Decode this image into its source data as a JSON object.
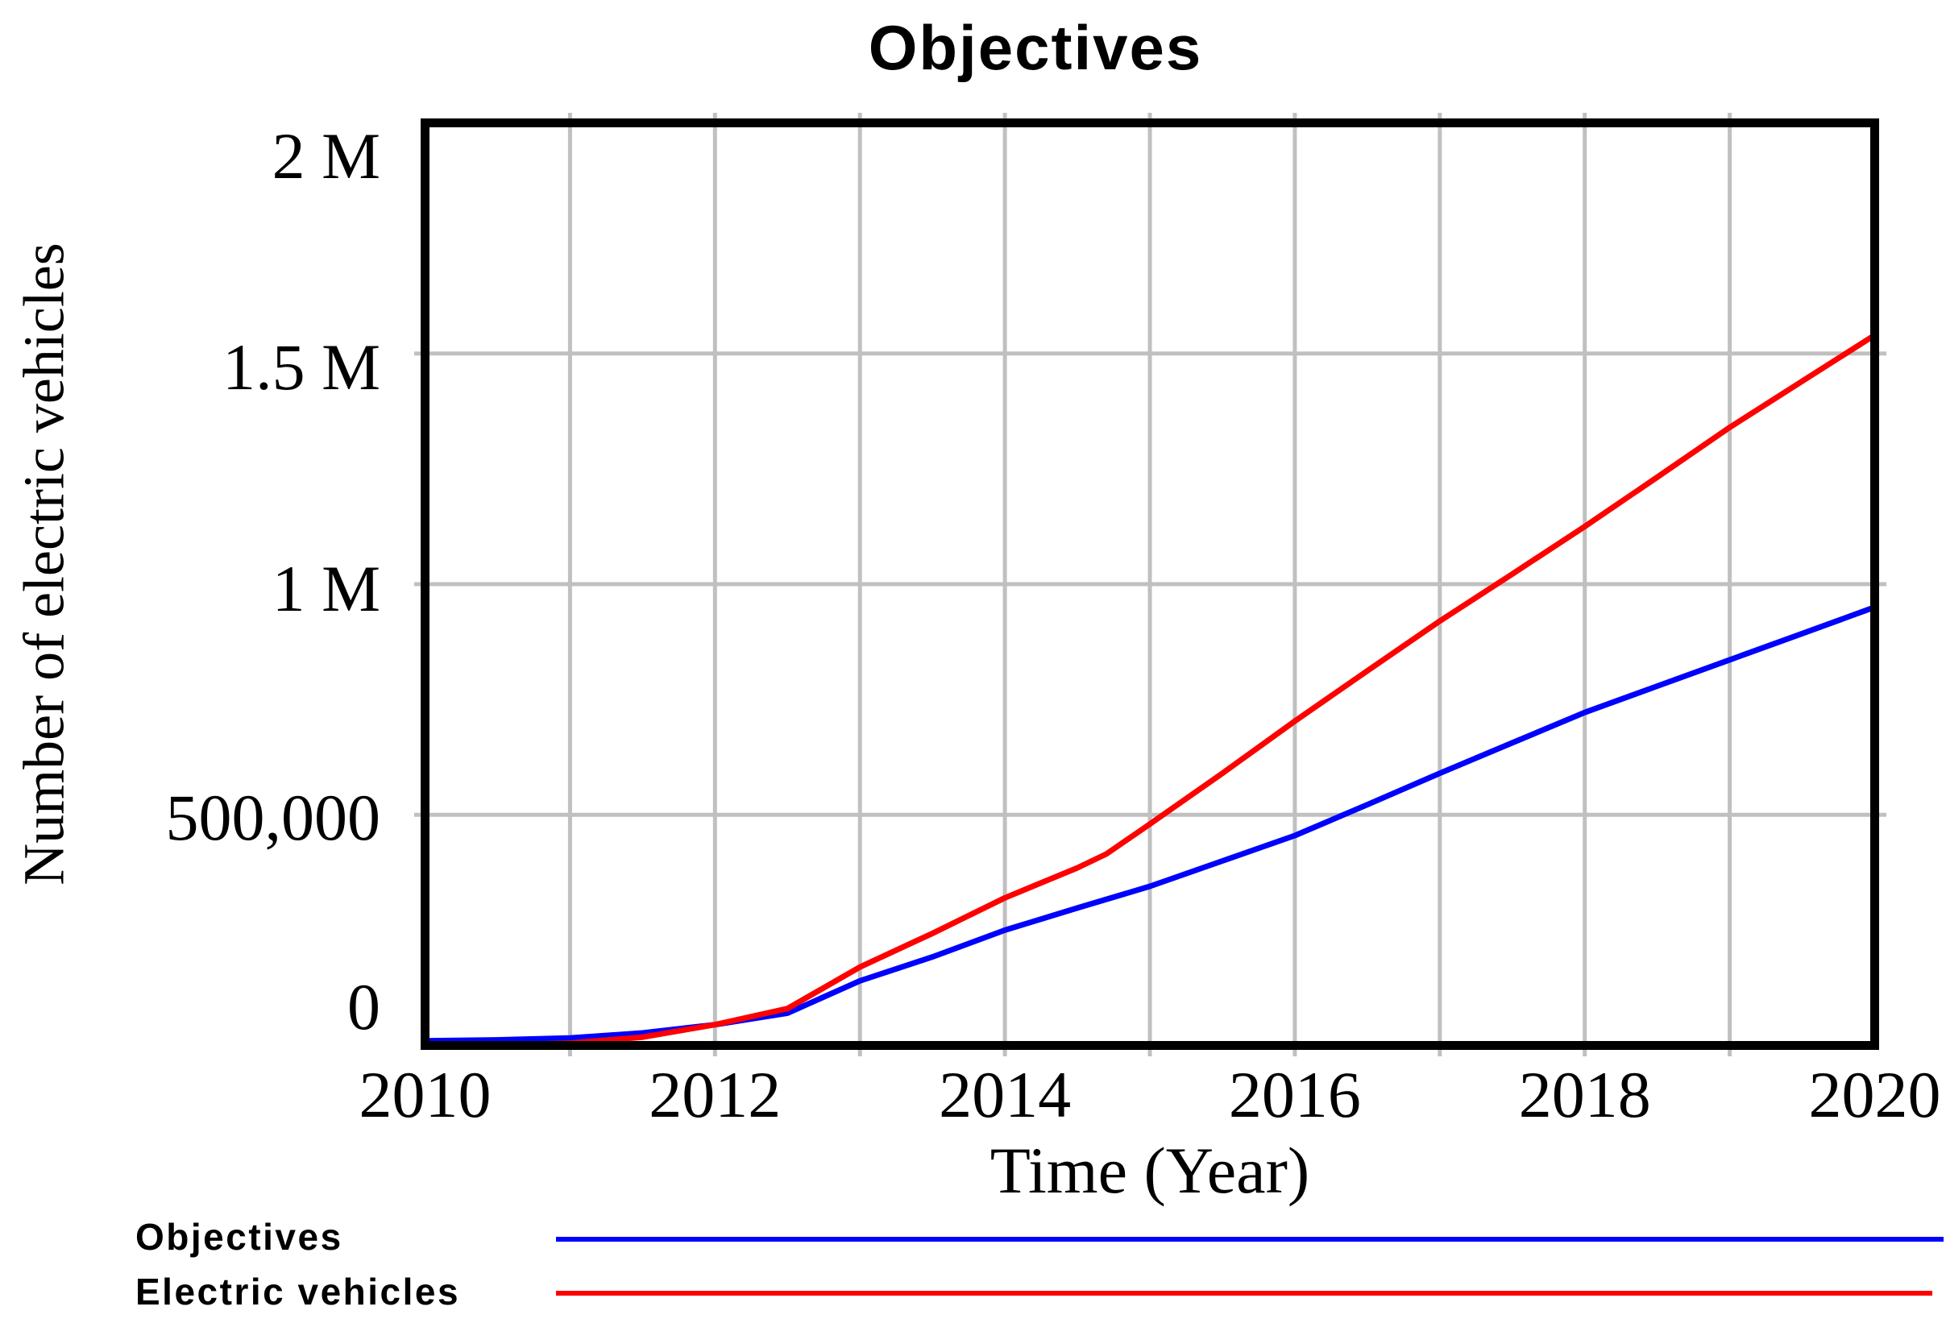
{
  "title": "Objectives",
  "y_axis": {
    "title": "Number of electric vehicles",
    "tick_labels": [
      "0",
      "500,000",
      "1 M",
      "1.5 M",
      "2 M"
    ],
    "tick_values": [
      0,
      500000,
      1000000,
      1500000,
      2000000
    ],
    "min": 0,
    "max": 2000000
  },
  "x_axis": {
    "title": "Time (Year)",
    "tick_labels": [
      "2010",
      "2012",
      "2014",
      "2016",
      "2018",
      "2020"
    ],
    "tick_values": [
      2010,
      2012,
      2014,
      2016,
      2018,
      2020
    ],
    "min": 2010,
    "max": 2020
  },
  "legend": [
    {
      "label": "Objectives",
      "color": "#0000ff"
    },
    {
      "label": "Electric vehicles",
      "color": "#ff0000"
    }
  ],
  "colors": {
    "background": "#ffffff",
    "frame": "#000000",
    "gridline": "#c0c0c0",
    "objectives_line": "#0000ff",
    "electric_vehicles_line": "#ff0000",
    "text": "#000000"
  },
  "chart_data": {
    "type": "line",
    "title": "Objectives",
    "xlabel": "Time (Year)",
    "ylabel": "Number of electric vehicles",
    "xlim": [
      2010,
      2020
    ],
    "ylim": [
      0,
      2000000
    ],
    "x_ticks": [
      2010,
      2012,
      2014,
      2016,
      2018,
      2020
    ],
    "y_ticks": [
      0,
      500000,
      1000000,
      1500000,
      2000000
    ],
    "grid": true,
    "gridline_years": [
      2011,
      2012,
      2013,
      2014,
      2015,
      2016,
      2017,
      2018,
      2019
    ],
    "legend_position": "bottom-left",
    "series": [
      {
        "name": "Objectives",
        "color": "#0000ff",
        "points": [
          [
            2010,
            10000
          ],
          [
            2010.5,
            12000
          ],
          [
            2011,
            16000
          ],
          [
            2011.5,
            27000
          ],
          [
            2012,
            45000
          ],
          [
            2012.5,
            70000
          ],
          [
            2013,
            140000
          ],
          [
            2013.5,
            192000
          ],
          [
            2014,
            250000
          ],
          [
            2014.5,
            298000
          ],
          [
            2015,
            345000
          ],
          [
            2015.5,
            400000
          ],
          [
            2016,
            455000
          ],
          [
            2016.5,
            522000
          ],
          [
            2017,
            590000
          ],
          [
            2017.5,
            656000
          ],
          [
            2018,
            722000
          ],
          [
            2018.5,
            779000
          ],
          [
            2019,
            836000
          ],
          [
            2019.5,
            893000
          ],
          [
            2020,
            950000
          ]
        ]
      },
      {
        "name": "Electric vehicles",
        "color": "#ff0000",
        "points": [
          [
            2010,
            0
          ],
          [
            2010.5,
            1000
          ],
          [
            2011,
            5000
          ],
          [
            2011.5,
            18000
          ],
          [
            2012,
            45000
          ],
          [
            2012.5,
            80000
          ],
          [
            2013,
            170000
          ],
          [
            2013.5,
            243000
          ],
          [
            2014,
            320000
          ],
          [
            2014.5,
            385000
          ],
          [
            2014.7,
            415000
          ],
          [
            2015,
            480000
          ],
          [
            2015.5,
            590000
          ],
          [
            2016,
            703000
          ],
          [
            2016.5,
            812000
          ],
          [
            2017,
            920000
          ],
          [
            2017.5,
            1022000
          ],
          [
            2018,
            1125000
          ],
          [
            2018.5,
            1232000
          ],
          [
            2019,
            1340000
          ],
          [
            2019.5,
            1440000
          ],
          [
            2020,
            1540000
          ]
        ]
      }
    ]
  }
}
